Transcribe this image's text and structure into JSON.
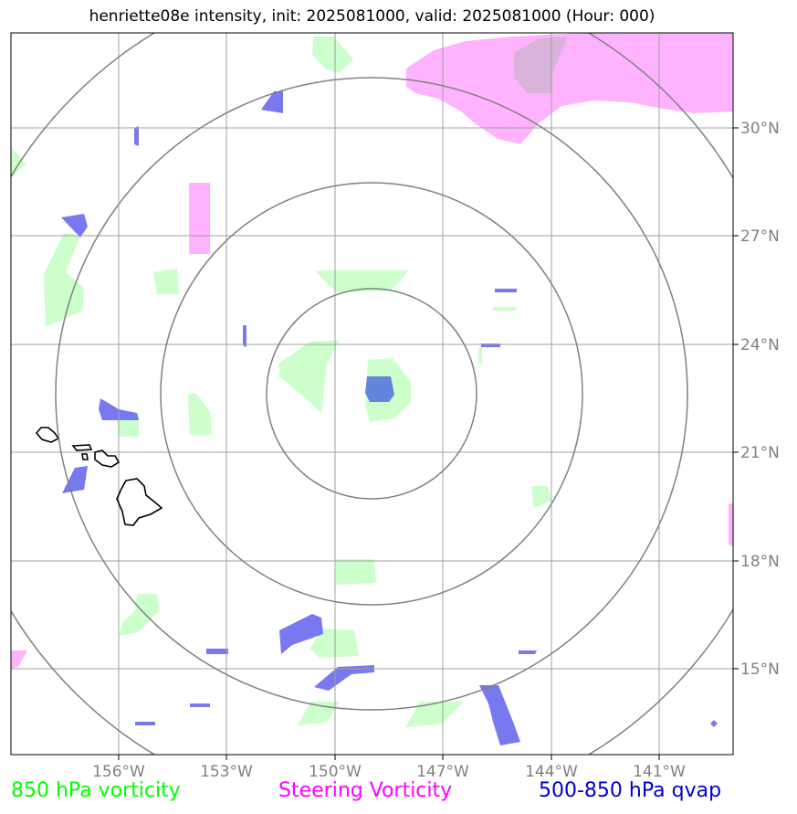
{
  "title": "henriette08e intensity, init: 2025081000, valid: 2025081000 (Hour: 000)",
  "lon_ticks": [
    "156°W",
    "153°W",
    "150°W",
    "147°W",
    "144°W",
    "141°W"
  ],
  "lat_ticks": [
    "30°N",
    "27°N",
    "24°N",
    "21°N",
    "18°N",
    "15°N"
  ],
  "legend": {
    "vort850": "850 hPa vorticity",
    "steering": "Steering Vorticity",
    "qvap": "500-850 hPa qvap"
  },
  "colors": {
    "vort850": "#ccffcc",
    "steering": "#ffb3ff",
    "qvap": "#7878f0",
    "grid": "#a0a0a0",
    "range_rings": "#808080",
    "coastline": "#000000"
  },
  "map": {
    "extent": {
      "lon_min": -159,
      "lon_max": -139,
      "lat_min": 12.7,
      "lat_max": 32.6
    },
    "range_ring_count": 4
  }
}
